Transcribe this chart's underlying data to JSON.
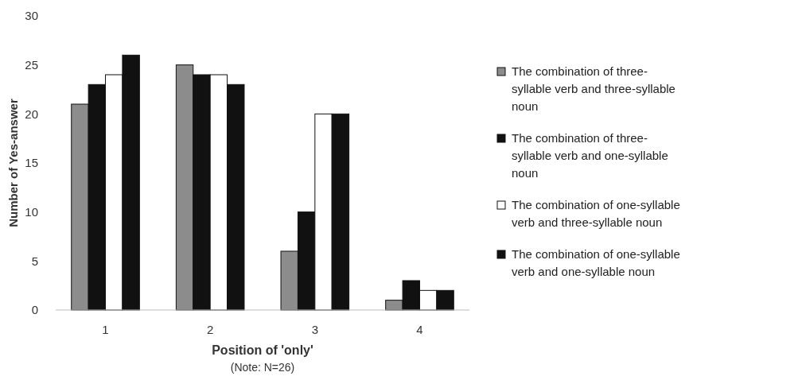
{
  "chart_data": {
    "type": "bar",
    "xlabel": "Position of 'only'",
    "ylabel": "Number of Yes-answer",
    "annotations": [
      "(Note: N=26)"
    ],
    "categories": [
      "1",
      "2",
      "3",
      "4"
    ],
    "series": [
      {
        "name": "The combination of three-syllable verb and three-syllable noun",
        "color": "#8c8c8c",
        "values": [
          21,
          25,
          6,
          1
        ]
      },
      {
        "name": "The combination of three-syllable verb and one-syllable noun",
        "color": "#111111",
        "values": [
          23,
          24,
          10,
          3
        ]
      },
      {
        "name": "The combination of one-syllable verb and three-syllable noun",
        "color": "#ffffff",
        "values": [
          24,
          24,
          20,
          2
        ]
      },
      {
        "name": "The combination of one-syllable verb and one-syllable noun",
        "color": "#111111",
        "values": [
          26,
          23,
          20,
          2
        ]
      }
    ],
    "ylim": [
      0,
      30
    ],
    "yticks": [
      0,
      5,
      10,
      15,
      20,
      25,
      30
    ],
    "grid": false,
    "legend": "right"
  }
}
